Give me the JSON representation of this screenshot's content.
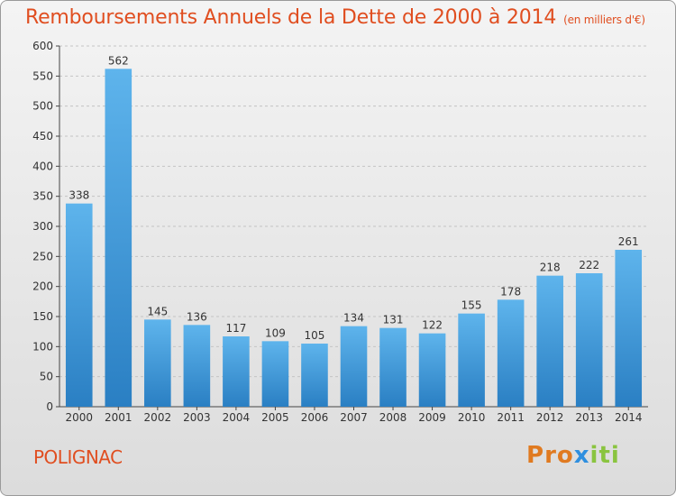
{
  "header": {
    "title": "Remboursements Annuels de la Dette de 2000 à 2014",
    "subtitle": "(en milliers d'€)"
  },
  "footer": {
    "commune": "POLIGNAC",
    "logo": "Proxiti"
  },
  "colors": {
    "title": "#e04e20",
    "bar_top": "#5eb4ec",
    "bar_bottom": "#2a7fc3",
    "logo_letters": [
      "#e07a20",
      "#e07a20",
      "#e07a20",
      "#2f8fdf",
      "#8ac43f",
      "#8ac43f",
      "#8ac43f"
    ]
  },
  "chart_data": {
    "type": "bar",
    "title": "Remboursements Annuels de la Dette de 2000 à 2014",
    "subtitle": "(en milliers d'€)",
    "categories": [
      "2000",
      "2001",
      "2002",
      "2003",
      "2004",
      "2005",
      "2006",
      "2007",
      "2008",
      "2009",
      "2010",
      "2011",
      "2012",
      "2013",
      "2014"
    ],
    "values": [
      338,
      562,
      145,
      136,
      117,
      109,
      105,
      134,
      131,
      122,
      155,
      178,
      218,
      222,
      261
    ],
    "ylim": [
      0,
      600
    ],
    "yticks": [
      0,
      50,
      100,
      150,
      200,
      250,
      300,
      350,
      400,
      450,
      500,
      550,
      600
    ],
    "grid": true
  }
}
